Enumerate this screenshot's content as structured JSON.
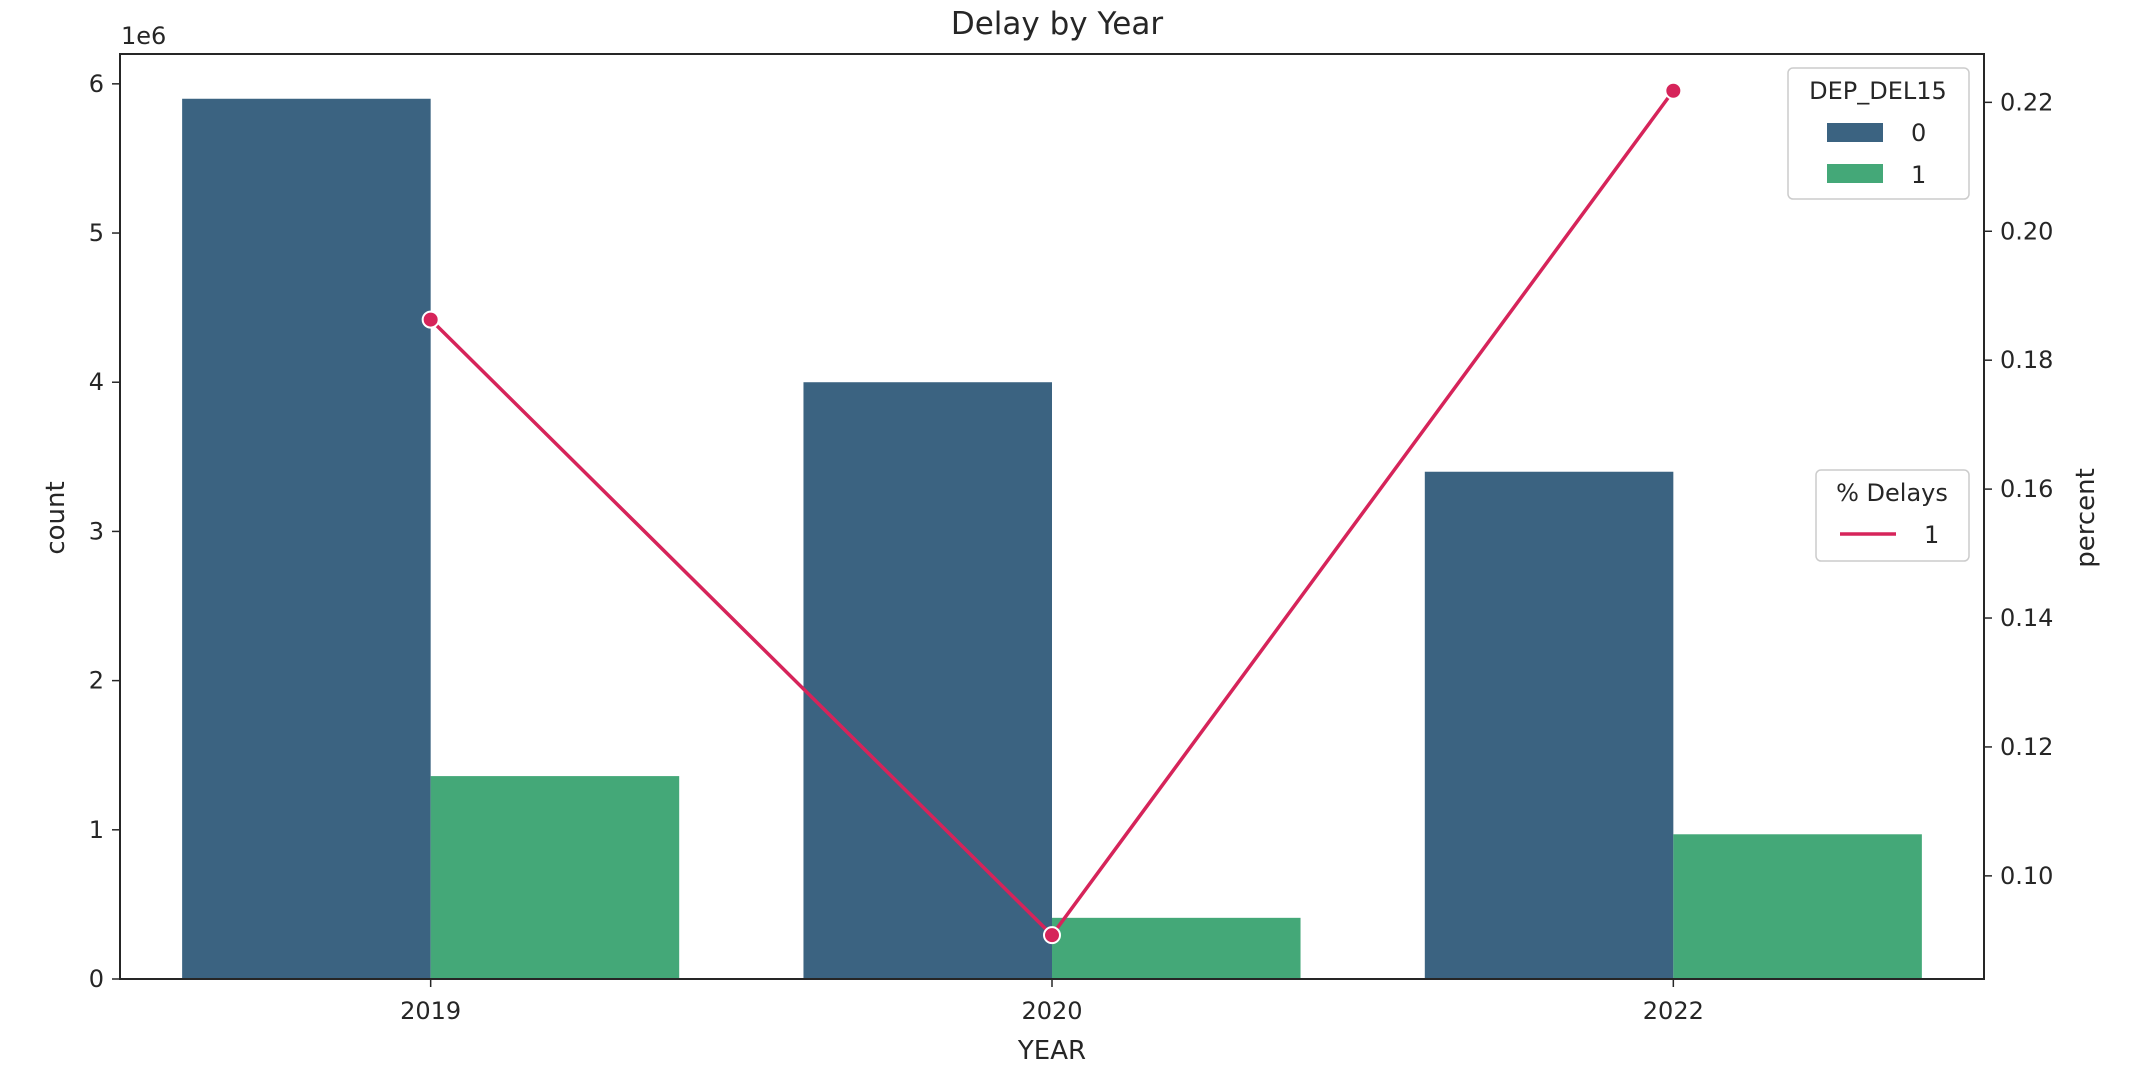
{
  "chart_data": {
    "type": "bar",
    "title": "Delay by Year",
    "xlabel": "YEAR",
    "ylabel": "count",
    "y_offset_label": "1e6",
    "ylim": [
      0,
      6.2
    ],
    "yticks": [
      0,
      1,
      2,
      3,
      4,
      5,
      6
    ],
    "categories": [
      "2019",
      "2020",
      "2022"
    ],
    "series": [
      {
        "name": "0",
        "color": "#3b6381",
        "values": [
          5.9,
          4.0,
          3.4
        ]
      },
      {
        "name": "1",
        "color": "#44a878",
        "values": [
          1.36,
          0.41,
          0.97
        ]
      }
    ],
    "legend": {
      "title": "DEP_DEL15",
      "placement": "top-right"
    },
    "secondary_axis": {
      "label": "percent",
      "ylim": [
        0.084,
        0.2275
      ],
      "yticks": [
        "0.10",
        "0.12",
        "0.14",
        "0.16",
        "0.18",
        "0.20",
        "0.22"
      ],
      "line": {
        "name": "1",
        "color": "#d6245a",
        "values": [
          0.1863,
          0.0908,
          0.2218
        ]
      },
      "legend": {
        "title": "% Delays",
        "placement": "center-right"
      }
    },
    "grid": false
  }
}
